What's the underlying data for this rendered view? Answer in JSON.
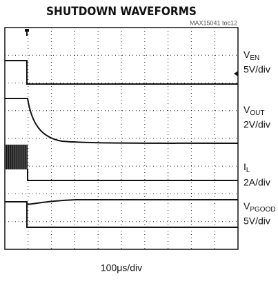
{
  "header": {
    "title": "SHUTDOWN WAVEFORMS",
    "figure_id": "MAX15041 toc12"
  },
  "channels": [
    {
      "symbol": "V",
      "subscript": "EN",
      "scale": "5V/div"
    },
    {
      "symbol": "V",
      "subscript": "OUT",
      "scale": "2V/div"
    },
    {
      "symbol": "I",
      "subscript": "L",
      "scale": "2A/div"
    },
    {
      "symbol": "V",
      "subscript": "PGOOD",
      "scale": "5V/div"
    }
  ],
  "timebase": "100μs/div"
}
